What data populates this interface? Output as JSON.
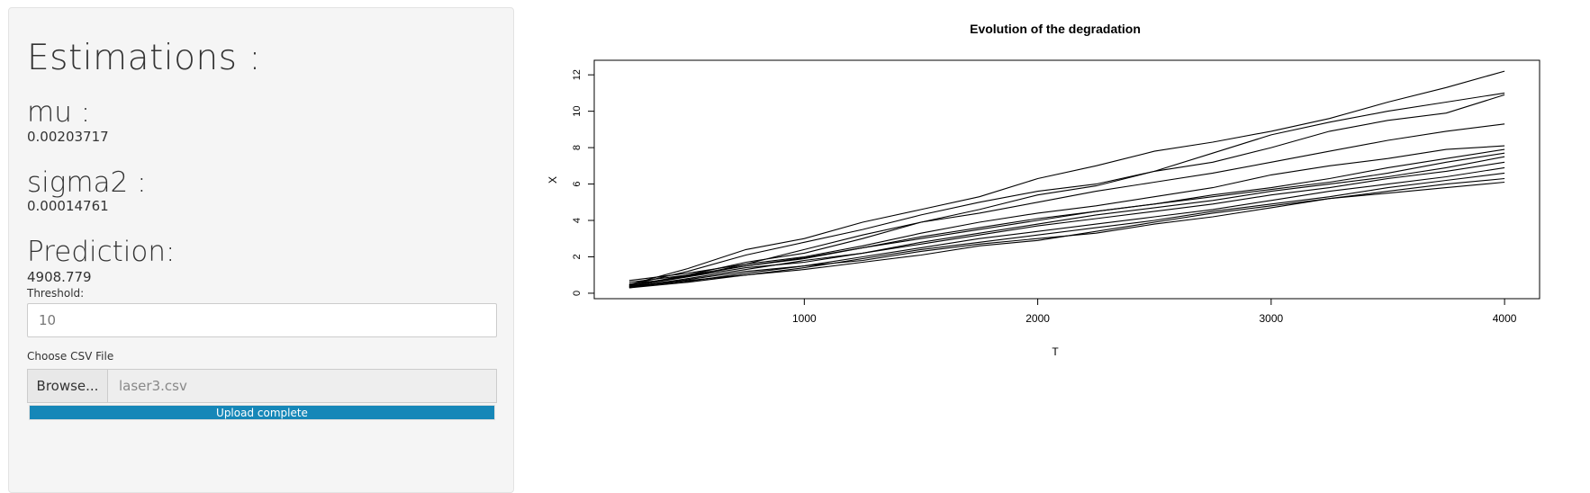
{
  "sidebar": {
    "estimations_heading": "Estimations :",
    "mu_label": "mu :",
    "mu_value": "0.00203717",
    "sigma2_label": "sigma2 :",
    "sigma2_value": "0.00014761",
    "prediction_label": "Prediction:",
    "prediction_value": "4908.779",
    "threshold_label": "Threshold:",
    "threshold_value": "10",
    "csv_label": "Choose CSV File",
    "browse_label": "Browse...",
    "file_name": "laser3.csv",
    "upload_status": "Upload complete",
    "upload_progress": 1.0
  },
  "chart_data": {
    "type": "line",
    "title": "Evolution of the degradation",
    "xlabel": "T",
    "ylabel": "X",
    "xlim": [
      100,
      4150
    ],
    "ylim": [
      -0.3,
      12.8
    ],
    "xticks": [
      1000,
      2000,
      3000,
      4000
    ],
    "yticks": [
      0,
      2,
      4,
      6,
      8,
      10,
      12
    ],
    "grid": false,
    "x": [
      250,
      500,
      750,
      1000,
      1250,
      1500,
      1750,
      2000,
      2250,
      2500,
      2750,
      3000,
      3250,
      3500,
      3750,
      4000
    ],
    "series": [
      {
        "values": [
          0.47,
          1.35,
          2.4,
          3.0,
          3.9,
          4.6,
          5.3,
          6.3,
          7.0,
          7.8,
          8.3,
          8.9,
          9.6,
          10.5,
          11.3,
          12.2
        ]
      },
      {
        "values": [
          0.45,
          1.2,
          2.1,
          2.8,
          3.5,
          4.3,
          5.0,
          5.6,
          6.0,
          6.7,
          7.7,
          8.7,
          9.4,
          10.0,
          10.5,
          11.0
        ]
      },
      {
        "values": [
          0.4,
          1.0,
          1.7,
          2.2,
          3.0,
          3.9,
          4.6,
          5.4,
          5.9,
          6.7,
          7.2,
          8.0,
          8.9,
          9.5,
          9.9,
          10.9
        ]
      },
      {
        "values": [
          0.36,
          0.9,
          1.6,
          2.4,
          3.2,
          3.9,
          4.4,
          5.0,
          5.6,
          6.1,
          6.6,
          7.2,
          7.8,
          8.4,
          8.9,
          9.3
        ]
      },
      {
        "values": [
          0.7,
          1.1,
          1.6,
          2.0,
          2.6,
          3.3,
          3.9,
          4.4,
          4.8,
          5.3,
          5.8,
          6.5,
          7.0,
          7.4,
          7.9,
          8.1
        ]
      },
      {
        "values": [
          0.42,
          0.95,
          1.5,
          1.95,
          2.5,
          3.0,
          3.5,
          4.0,
          4.5,
          4.9,
          5.4,
          5.8,
          6.3,
          6.9,
          7.4,
          7.9
        ]
      },
      {
        "values": [
          0.6,
          1.0,
          1.5,
          1.9,
          2.5,
          3.1,
          3.6,
          4.1,
          4.5,
          4.9,
          5.3,
          5.7,
          6.1,
          6.6,
          7.2,
          7.7
        ]
      },
      {
        "values": [
          0.33,
          0.8,
          1.3,
          1.8,
          2.2,
          2.8,
          3.3,
          3.8,
          4.3,
          4.7,
          5.1,
          5.6,
          6.0,
          6.4,
          6.9,
          7.5
        ]
      },
      {
        "values": [
          0.5,
          0.9,
          1.4,
          1.7,
          2.2,
          2.7,
          3.2,
          3.7,
          4.1,
          4.5,
          4.9,
          5.4,
          5.8,
          6.3,
          6.7,
          7.2
        ]
      },
      {
        "values": [
          0.3,
          0.75,
          1.2,
          1.5,
          2.0,
          2.5,
          3.0,
          3.4,
          3.8,
          4.2,
          4.6,
          5.1,
          5.6,
          6.0,
          6.4,
          6.9
        ]
      },
      {
        "values": [
          0.38,
          0.7,
          1.0,
          1.4,
          1.9,
          2.4,
          2.8,
          3.2,
          3.6,
          4.0,
          4.5,
          4.9,
          5.3,
          5.8,
          6.2,
          6.6
        ]
      },
      {
        "values": [
          0.35,
          0.65,
          1.1,
          1.5,
          1.8,
          2.3,
          2.7,
          3.0,
          3.3,
          3.8,
          4.2,
          4.7,
          5.2,
          5.6,
          6.0,
          6.3
        ]
      },
      {
        "values": [
          0.3,
          0.6,
          1.0,
          1.3,
          1.7,
          2.1,
          2.6,
          2.9,
          3.4,
          3.9,
          4.4,
          4.8,
          5.2,
          5.5,
          5.8,
          6.1
        ]
      }
    ]
  }
}
